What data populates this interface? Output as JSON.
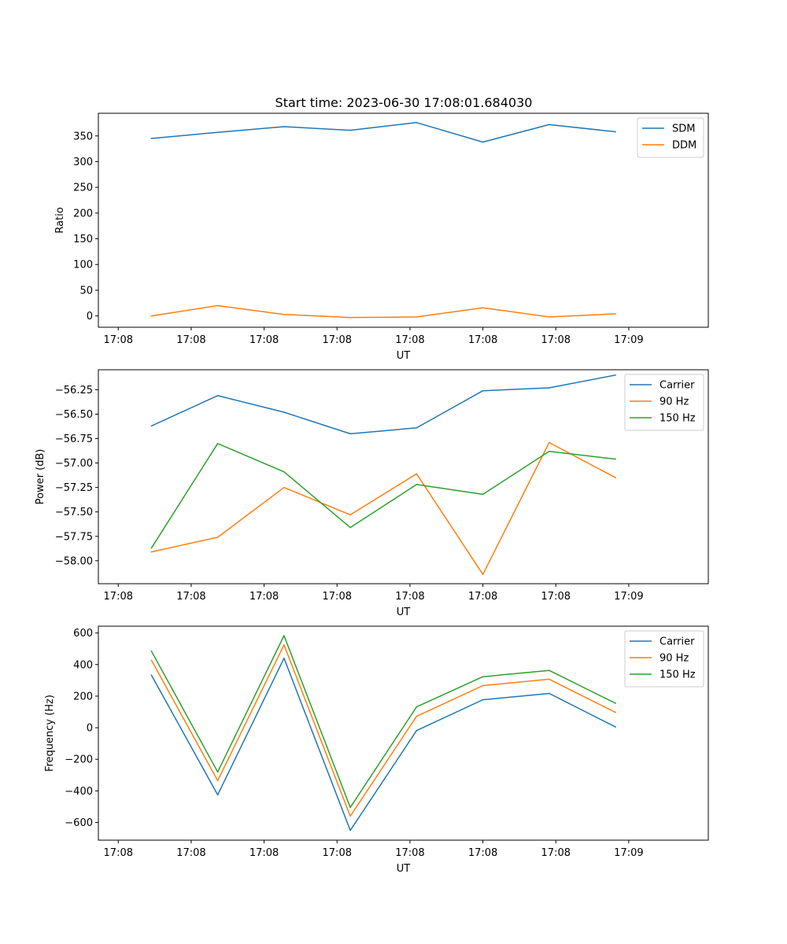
{
  "figure_title": "Start time: 2023-06-30 17:08:01.684030",
  "chart_data": [
    {
      "type": "line",
      "title": "Start time: 2023-06-30 17:08:01.684030",
      "xlabel": "UT",
      "ylabel": "Ratio",
      "x_tick_labels": [
        "17:08",
        "17:08",
        "17:08",
        "17:08",
        "17:08",
        "17:08",
        "17:08"
      ],
      "x_last_tick_label": "17:09",
      "x_points": [
        1,
        2,
        3,
        4,
        5,
        6,
        7,
        8
      ],
      "xlim": [
        0.2,
        9.4
      ],
      "ylim": [
        -22,
        394
      ],
      "yticks": [
        0,
        50,
        100,
        150,
        200,
        250,
        300,
        350
      ],
      "ytick_labels": [
        "0",
        "50",
        "100",
        "150",
        "200",
        "250",
        "300",
        "350"
      ],
      "grid": false,
      "legend_position": "top-right",
      "series": [
        {
          "name": "SDM",
          "color": "#1f77b4",
          "values": [
            345,
            357,
            368,
            361,
            376,
            338,
            372,
            358
          ]
        },
        {
          "name": "DDM",
          "color": "#ff7f0e",
          "values": [
            0,
            20,
            3,
            -3,
            -2,
            16,
            -2,
            4
          ]
        }
      ]
    },
    {
      "type": "line",
      "xlabel": "UT",
      "ylabel": "Power (dB)",
      "x_tick_labels": [
        "17:08",
        "17:08",
        "17:08",
        "17:08",
        "17:08",
        "17:08",
        "17:08"
      ],
      "x_last_tick_label": "17:09",
      "x_points": [
        1,
        2,
        3,
        4,
        5,
        6,
        7,
        8
      ],
      "xlim": [
        0.2,
        9.4
      ],
      "ylim": [
        -58.235,
        -56.045
      ],
      "yticks": [
        -58.0,
        -57.75,
        -57.5,
        -57.25,
        -57.0,
        -56.75,
        -56.5,
        -56.25
      ],
      "ytick_labels": [
        "−58.00",
        "−57.75",
        "−57.50",
        "−57.25",
        "−57.00",
        "−56.75",
        "−56.50",
        "−56.25"
      ],
      "grid": false,
      "legend_position": "top-right",
      "series": [
        {
          "name": "Carrier",
          "color": "#1f77b4",
          "values": [
            -56.62,
            -56.31,
            -56.48,
            -56.7,
            -56.64,
            -56.26,
            -56.23,
            -56.1
          ]
        },
        {
          "name": "90 Hz",
          "color": "#ff7f0e",
          "values": [
            -57.91,
            -57.76,
            -57.25,
            -57.53,
            -57.11,
            -58.14,
            -56.79,
            -57.15
          ]
        },
        {
          "name": "150 Hz",
          "color": "#2ca02c",
          "values": [
            -57.87,
            -56.8,
            -57.09,
            -57.66,
            -57.22,
            -57.32,
            -56.88,
            -56.96
          ]
        }
      ]
    },
    {
      "type": "line",
      "xlabel": "UT",
      "ylabel": "Frequency (Hz)",
      "x_tick_labels": [
        "17:08",
        "17:08",
        "17:08",
        "17:08",
        "17:08",
        "17:08",
        "17:08"
      ],
      "x_last_tick_label": "17:09",
      "x_points": [
        1,
        2,
        3,
        4,
        5,
        6,
        7,
        8
      ],
      "xlim": [
        0.2,
        9.4
      ],
      "ylim": [
        -712,
        643
      ],
      "yticks": [
        -600,
        -400,
        -200,
        0,
        200,
        400,
        600
      ],
      "ytick_labels": [
        "−600",
        "−400",
        "−200",
        "0",
        "200",
        "400",
        "600"
      ],
      "grid": false,
      "legend_position": "top-right",
      "series": [
        {
          "name": "Carrier",
          "color": "#1f77b4",
          "values": [
            333,
            -425,
            440,
            -650,
            -18,
            177,
            217,
            5
          ]
        },
        {
          "name": "90 Hz",
          "color": "#ff7f0e",
          "values": [
            428,
            -335,
            525,
            -560,
            72,
            267,
            307,
            97
          ]
        },
        {
          "name": "150 Hz",
          "color": "#2ca02c",
          "values": [
            485,
            -280,
            583,
            -505,
            132,
            323,
            363,
            155
          ]
        }
      ]
    }
  ]
}
